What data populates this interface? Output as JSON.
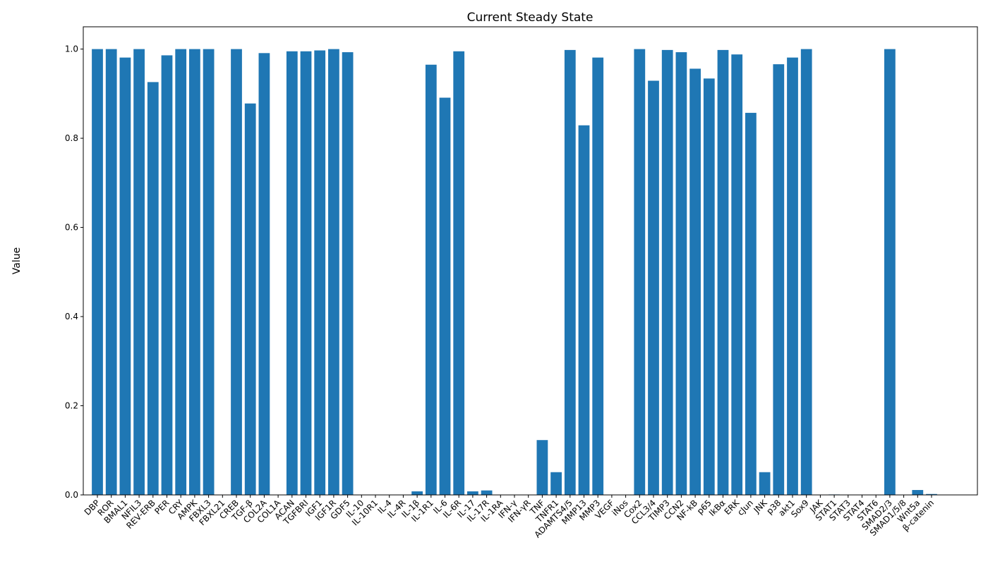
{
  "chart_data": {
    "type": "bar",
    "title": "Current Steady State",
    "y_label": "Value",
    "color": "#1f77b4",
    "grid": false,
    "categories": [
      "DBP",
      "ROR",
      "BMAL1",
      "NFIL3",
      "REV-ERB",
      "PER",
      "CRY",
      "AMPK",
      "FBXL3",
      "FBXL21",
      "CREB",
      "TGF-β",
      "COL2A",
      "COL1A",
      "ACAN",
      "TGFBRI",
      "IGF1",
      "IGF1R",
      "GDF5",
      "IL-10",
      "IL-10R1",
      "IL-4",
      "IL-4R",
      "IL-1β",
      "IL-1R1",
      "IL-6",
      "IL-6R",
      "IL-17",
      "IL-17R",
      "IL-1RA",
      "IFN-γ",
      "IFN-γR",
      "TNF",
      "TNFR1",
      "ADAMTS4/5",
      "MMP13",
      "MMP3",
      "VEGF",
      "iNos",
      "Cox2",
      "CCL3/4",
      "TIMP3",
      "CCN2",
      "NF-kB",
      "p65",
      "IkBα",
      "ERK",
      "cJun",
      "JNK",
      "p38",
      "akt1",
      "Sox9",
      "JAK",
      "STAT1",
      "STAT3",
      "STAT4",
      "STAT6",
      "SMAD2/3",
      "SMAD1/5/8",
      "Wnt5a",
      "β-catenin"
    ],
    "values": [
      1.0,
      1.0,
      0.981,
      1.0,
      0.926,
      0.986,
      1.0,
      1.0,
      1.0,
      0,
      1.0,
      0.878,
      0.991,
      0,
      0.995,
      0.995,
      0.997,
      1.0,
      0.993,
      0,
      0,
      0,
      0,
      0.008,
      0.965,
      0.891,
      0.995,
      0.008,
      0.01,
      0,
      0,
      0,
      0.123,
      0.051,
      0.998,
      0.829,
      0.981,
      0,
      0,
      1.0,
      0.929,
      0.998,
      0.993,
      0.956,
      0.934,
      0.998,
      0.988,
      0.857,
      0.051,
      0.966,
      0.981,
      1.0,
      0,
      0.001,
      0,
      0,
      0,
      1.0,
      0,
      0.011,
      0.002
    ],
    "ylim": [
      0,
      1.05
    ],
    "yticks": [
      {
        "value": 0,
        "label": "0.0"
      },
      {
        "value": 0.2,
        "label": "0.2"
      },
      {
        "value": 0.4,
        "label": "0.4"
      },
      {
        "value": 0.6,
        "label": "0.6"
      },
      {
        "value": 0.8,
        "label": "0.8"
      },
      {
        "value": 1.0,
        "label": "1.0"
      }
    ]
  }
}
